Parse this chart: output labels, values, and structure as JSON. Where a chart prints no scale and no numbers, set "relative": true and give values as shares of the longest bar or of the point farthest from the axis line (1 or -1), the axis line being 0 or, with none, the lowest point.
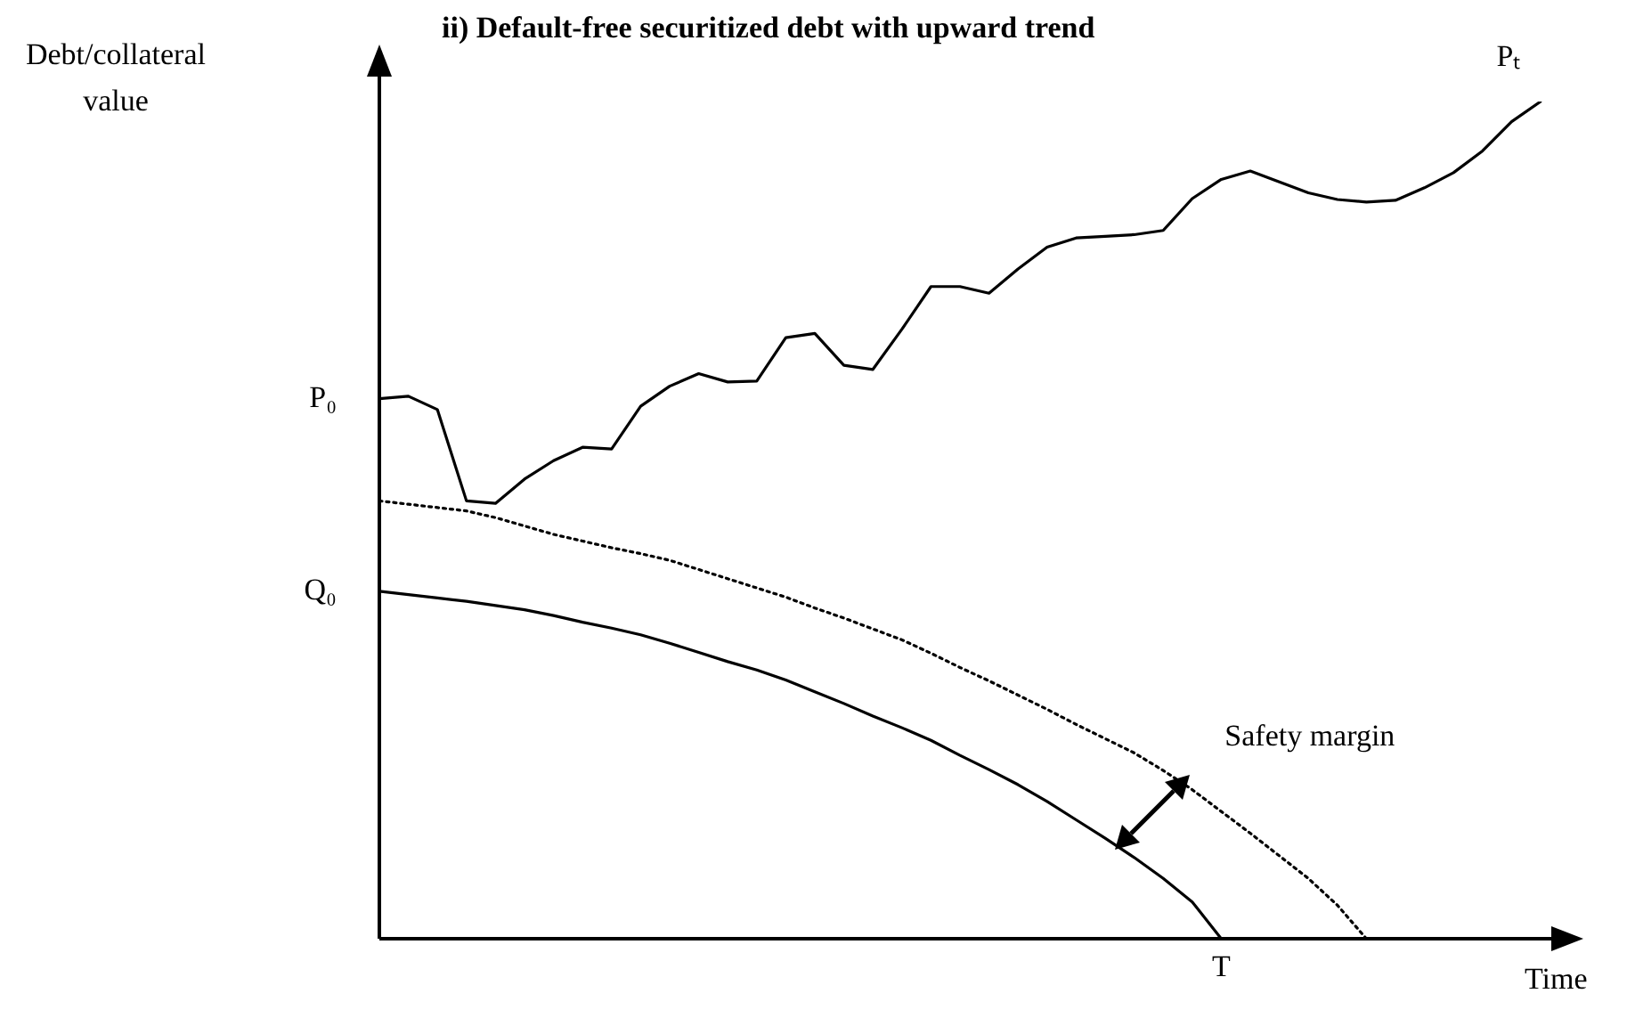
{
  "chart_data": {
    "type": "line",
    "title": "ii) Default-free securitized debt with upward trend",
    "xlabel": "Time",
    "relative": true,
    "legend": false,
    "marker": "none",
    "categories": [
      null,
      null,
      null,
      null,
      null,
      null,
      null,
      null,
      null,
      null,
      null,
      null,
      null,
      null,
      null,
      null,
      null,
      null,
      null,
      null,
      null,
      null,
      null,
      null,
      null,
      null,
      null,
      null,
      null,
      null,
      null,
      null,
      null,
      null,
      null,
      null,
      null,
      null,
      null,
      null,
      null
    ],
    "annotations": [
      "P₀",
      "Q₀",
      "Pₜ",
      "T",
      "Safety margin",
      "Debt/collateral value"
    ],
    "series": [
      {
        "color": "#000000",
        "line_style": "solid",
        "values": [
          0.645,
          0.648,
          0.632,
          0.523,
          0.52,
          0.549,
          0.571,
          0.587,
          0.585,
          0.636,
          0.66,
          0.675,
          0.665,
          0.666,
          0.718,
          0.723,
          0.685,
          0.68,
          0.728,
          0.779,
          0.779,
          0.771,
          0.8,
          0.826,
          0.837,
          0.839,
          0.841,
          0.846,
          0.884,
          0.907,
          0.917,
          0.904,
          0.891,
          0.883,
          0.88,
          0.882,
          0.897,
          0.915,
          0.941,
          0.976,
          1
        ]
      },
      {
        "color": "#000000",
        "line_style": "dotted",
        "values": [
          0.523,
          0.519,
          0.515,
          0.511,
          0.503,
          0.493,
          0.483,
          0.475,
          0.467,
          0.46,
          0.452,
          0.441,
          0.43,
          0.419,
          0.408,
          0.395,
          0.383,
          0.37,
          0.357,
          0.341,
          0.324,
          0.308,
          0.291,
          0.274,
          0.256,
          0.239,
          0.222,
          0.201,
          0.178,
          0.152,
          0.126,
          0.099,
          0.072,
          0.04,
          0,
          null,
          null,
          null,
          null,
          null,
          null
        ]
      },
      {
        "color": "#000000",
        "line_style": "solid",
        "values": [
          0.415,
          0.411,
          0.407,
          0.403,
          0.398,
          0.393,
          0.386,
          0.378,
          0.371,
          0.363,
          0.353,
          0.342,
          0.331,
          0.321,
          0.309,
          0.295,
          0.281,
          0.266,
          0.252,
          0.237,
          0.219,
          0.202,
          0.184,
          0.164,
          0.142,
          0.12,
          0.097,
          0.072,
          0.044,
          0,
          null,
          null,
          null,
          null,
          null,
          null,
          null,
          null,
          null,
          null,
          null
        ]
      }
    ]
  }
}
